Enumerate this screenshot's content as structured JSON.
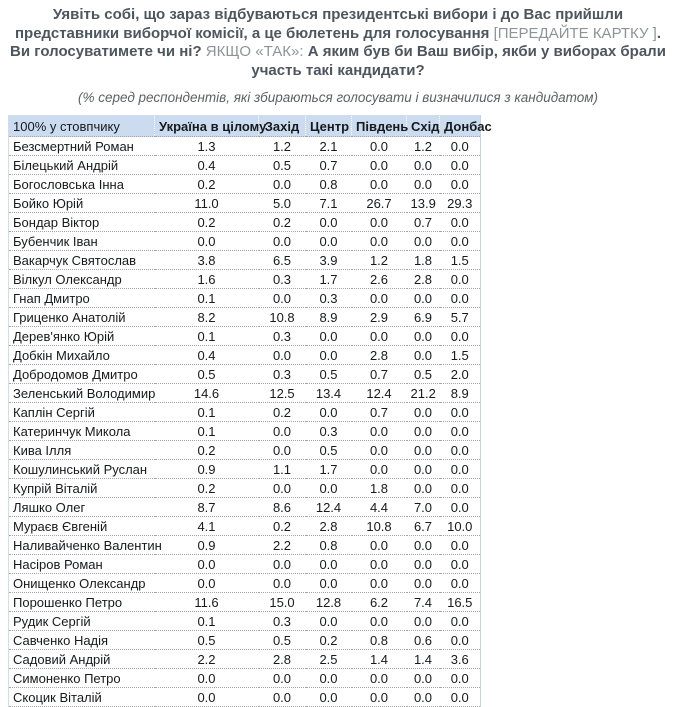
{
  "title": {
    "segments": [
      {
        "text": "Уявіть собі, що зараз відбуваються президентські вибори і до Вас прийшли представники виборчої комісії, а це бюлетень для голосування ",
        "muted": false
      },
      {
        "text": "[ПЕРЕДАЙТЕ КАРТКУ ]",
        "muted": true
      },
      {
        "text": ". Ви голосуватимете чи ні? ",
        "muted": false
      },
      {
        "text": "ЯКЩО «ТАК»: ",
        "muted": true
      },
      {
        "text": "А яким був би Ваш вибір, якби у виборах брали участь такі кандидати?",
        "muted": false
      }
    ]
  },
  "subtitle": "(% серед респондентів, які збираються голосувати і визначилися з кандидатом)",
  "colors": {
    "header_bg": "#cbdcf1",
    "title_text": "#4d565e",
    "muted_text": "#8f9398"
  },
  "table": {
    "headers": [
      "100% у стовпчику",
      "Україна в цілому",
      "Захід",
      "Центр",
      "Південь",
      "Схід",
      "Донбас"
    ],
    "rows": [
      {
        "name": "Безсмертний Роман",
        "values": [
          "1.3",
          "1.2",
          "2.1",
          "0.0",
          "1.2",
          "0.0"
        ]
      },
      {
        "name": "Білецький Андрій",
        "values": [
          "0.4",
          "0.5",
          "0.7",
          "0.0",
          "0.0",
          "0.0"
        ]
      },
      {
        "name": "Богословська Інна",
        "values": [
          "0.2",
          "0.0",
          "0.8",
          "0.0",
          "0.0",
          "0.0"
        ]
      },
      {
        "name": "Бойко Юрій",
        "values": [
          "11.0",
          "5.0",
          "7.1",
          "26.7",
          "13.9",
          "29.3"
        ]
      },
      {
        "name": "Бондар Віктор",
        "values": [
          "0.2",
          "0.2",
          "0.0",
          "0.0",
          "0.7",
          "0.0"
        ]
      },
      {
        "name": "Бубенчик Іван",
        "values": [
          "0.0",
          "0.0",
          "0.0",
          "0.0",
          "0.0",
          "0.0"
        ]
      },
      {
        "name": "Вакарчук Святослав",
        "values": [
          "3.8",
          "6.5",
          "3.9",
          "1.2",
          "1.8",
          "1.5"
        ]
      },
      {
        "name": "Вілкул Олександр",
        "values": [
          "1.6",
          "0.3",
          "1.7",
          "2.6",
          "2.8",
          "0.0"
        ]
      },
      {
        "name": "Гнап Дмитро",
        "values": [
          "0.1",
          "0.0",
          "0.3",
          "0.0",
          "0.0",
          "0.0"
        ]
      },
      {
        "name": "Гриценко Анатолій",
        "values": [
          "8.2",
          "10.8",
          "8.9",
          "2.9",
          "6.9",
          "5.7"
        ]
      },
      {
        "name": "Дерев'янко Юрій",
        "values": [
          "0.1",
          "0.3",
          "0.0",
          "0.0",
          "0.0",
          "0.0"
        ]
      },
      {
        "name": "Добкін Михайло",
        "values": [
          "0.4",
          "0.0",
          "0.0",
          "2.8",
          "0.0",
          "1.5"
        ]
      },
      {
        "name": "Добродомов Дмитро",
        "values": [
          "0.5",
          "0.3",
          "0.5",
          "0.7",
          "0.5",
          "2.0"
        ]
      },
      {
        "name": "Зеленський Володимир",
        "values": [
          "14.6",
          "12.5",
          "13.4",
          "12.4",
          "21.2",
          "8.9"
        ]
      },
      {
        "name": "Каплін Сергій",
        "values": [
          "0.1",
          "0.2",
          "0.0",
          "0.7",
          "0.0",
          "0.0"
        ]
      },
      {
        "name": "Катеринчук Микола",
        "values": [
          "0.1",
          "0.0",
          "0.3",
          "0.0",
          "0.0",
          "0.0"
        ]
      },
      {
        "name": "Кива Ілля",
        "values": [
          "0.2",
          "0.0",
          "0.5",
          "0.0",
          "0.0",
          "0.0"
        ]
      },
      {
        "name": "Кошулинський Руслан",
        "values": [
          "0.9",
          "1.1",
          "1.7",
          "0.0",
          "0.0",
          "0.0"
        ]
      },
      {
        "name": "Купрій Віталій",
        "values": [
          "0.2",
          "0.0",
          "0.0",
          "1.8",
          "0.0",
          "0.0"
        ]
      },
      {
        "name": "Ляшко Олег",
        "values": [
          "8.7",
          "8.6",
          "12.4",
          "4.4",
          "7.0",
          "0.0"
        ]
      },
      {
        "name": "Мураєв Євгеній",
        "values": [
          "4.1",
          "0.2",
          "2.8",
          "10.8",
          "6.7",
          "10.0"
        ]
      },
      {
        "name": "Наливайченко Валентин",
        "values": [
          "0.9",
          "2.2",
          "0.8",
          "0.0",
          "0.0",
          "0.0"
        ]
      },
      {
        "name": "Насіров Роман",
        "values": [
          "0.0",
          "0.0",
          "0.0",
          "0.0",
          "0.0",
          "0.0"
        ]
      },
      {
        "name": "Онищенко Олександр",
        "values": [
          "0.0",
          "0.0",
          "0.0",
          "0.0",
          "0.0",
          "0.0"
        ]
      },
      {
        "name": "Порошенко Петро",
        "values": [
          "11.6",
          "15.0",
          "12.8",
          "6.2",
          "7.4",
          "16.5"
        ]
      },
      {
        "name": "Рудик Сергій",
        "values": [
          "0.1",
          "0.3",
          "0.0",
          "0.0",
          "0.0",
          "0.0"
        ]
      },
      {
        "name": "Савченко Надія",
        "values": [
          "0.5",
          "0.5",
          "0.2",
          "0.8",
          "0.6",
          "0.0"
        ]
      },
      {
        "name": "Садовий Андрій",
        "values": [
          "2.2",
          "2.8",
          "2.5",
          "1.4",
          "1.4",
          "3.6"
        ]
      },
      {
        "name": "Симоненко Петро",
        "values": [
          "0.0",
          "0.0",
          "0.0",
          "0.0",
          "0.0",
          "0.0"
        ]
      },
      {
        "name": "Скоцик Віталій",
        "values": [
          "0.0",
          "0.0",
          "0.0",
          "0.0",
          "0.0",
          "0.0"
        ]
      }
    ]
  }
}
